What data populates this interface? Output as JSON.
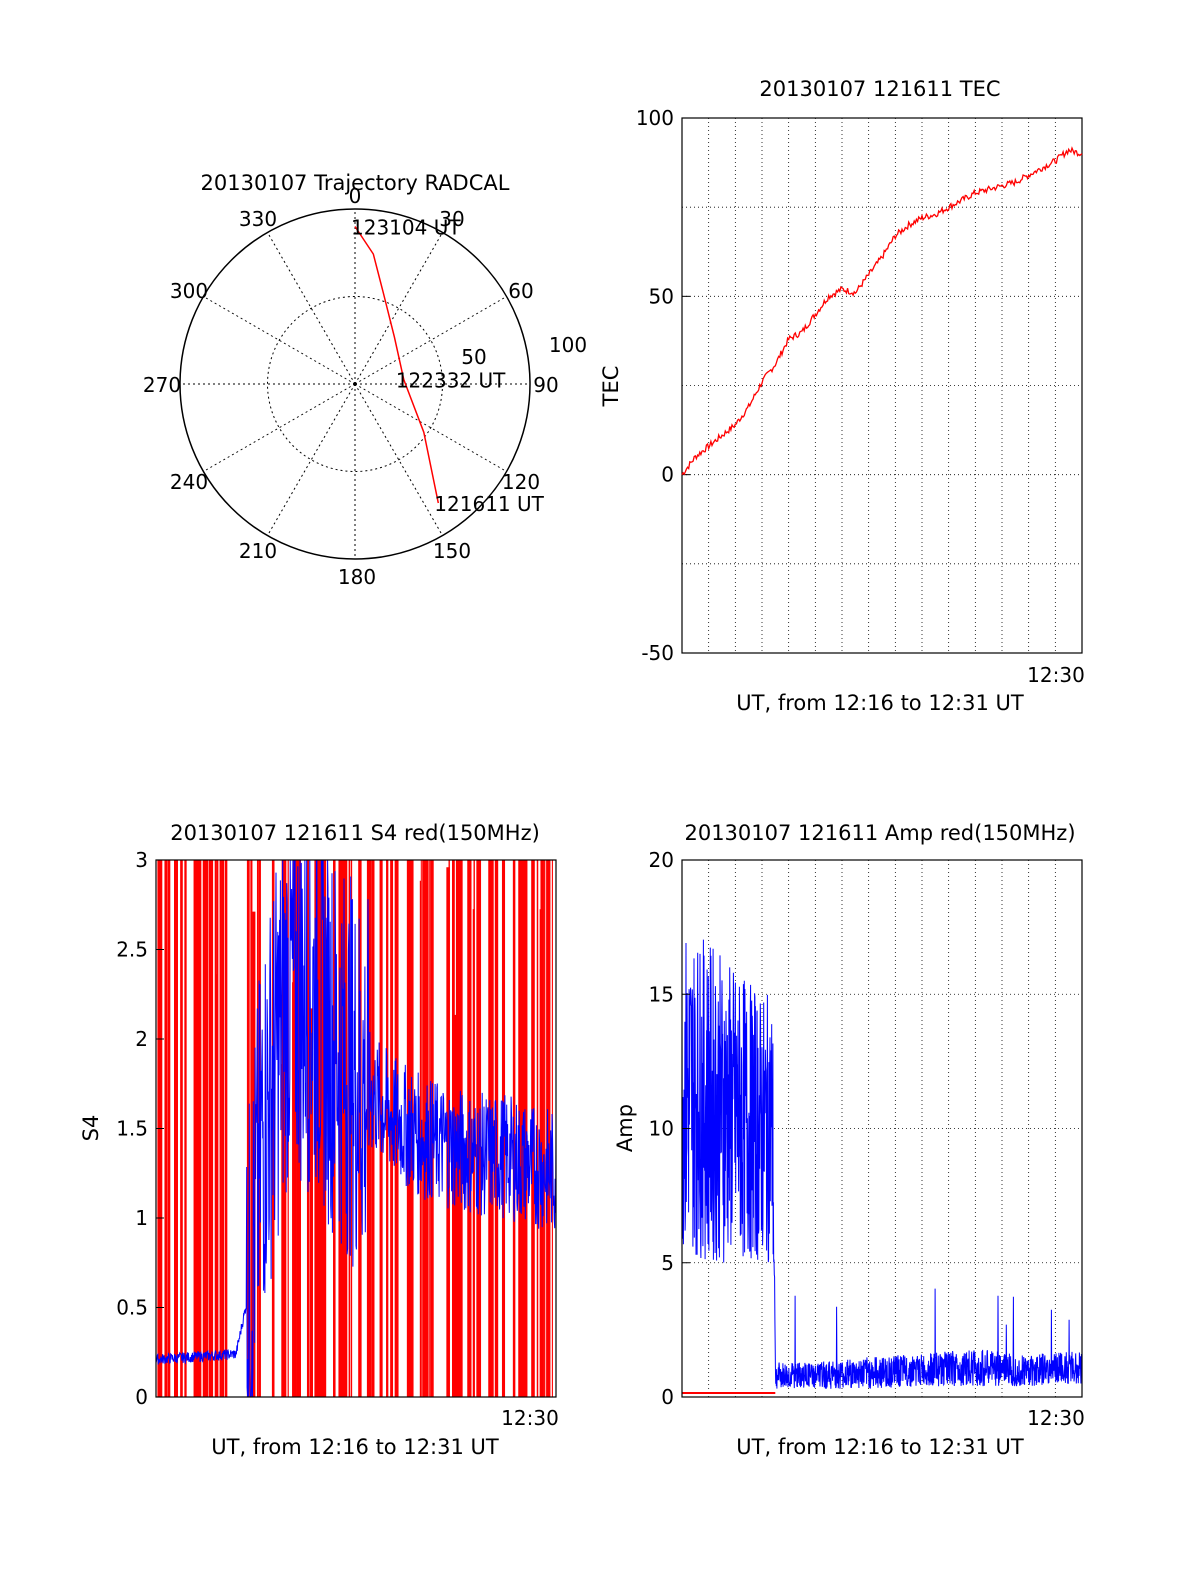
{
  "colors": {
    "red": "#ff0000",
    "blue": "#0000ff",
    "axis": "#000000",
    "grid": "#000000"
  },
  "chart_data": [
    {
      "id": "trajectory",
      "type": "polar",
      "title": "20130107 Trajectory RADCAL",
      "azimuth_labels": [
        "0",
        "30",
        "60",
        "90",
        "120",
        "150",
        "180",
        "210",
        "240",
        "270",
        "300",
        "330"
      ],
      "radial_labels": [
        "50",
        "100"
      ],
      "r_max": 100,
      "grid": true,
      "track": [
        {
          "az": 0,
          "r": 90
        },
        {
          "az": 8,
          "r": 75
        },
        {
          "az": 17,
          "r": 55
        },
        {
          "az": 40,
          "r": 35
        },
        {
          "az": 85,
          "r": 28
        },
        {
          "az": 125,
          "r": 48
        },
        {
          "az": 145,
          "r": 83
        }
      ],
      "annotations": [
        {
          "text": "123104 UT",
          "az": 0,
          "r": 90
        },
        {
          "text": "122332 UT",
          "az": 85,
          "r": 28
        },
        {
          "text": "121611 UT",
          "az": 145,
          "r": 83
        }
      ]
    },
    {
      "id": "tec",
      "type": "line",
      "title": "20130107 121611 TEC",
      "xlabel": "UT, from 12:16 to 12:31 UT",
      "ylabel": "TEC",
      "xlim": [
        0,
        15
      ],
      "ylim": [
        -50,
        100
      ],
      "yticks": [
        "100",
        "50",
        "0",
        "-50"
      ],
      "xtick_label": "12:30",
      "grid": true,
      "series": [
        {
          "color": "red",
          "x": [
            0,
            0.5,
            1,
            1.5,
            2,
            2.5,
            3,
            3.5,
            4,
            4.5,
            5,
            5.5,
            6,
            6.5,
            7,
            7.5,
            8,
            8.5,
            9,
            9.5,
            10,
            10.5,
            11,
            11.5,
            12,
            12.5,
            13,
            13.5,
            14,
            14.5,
            15
          ],
          "y": [
            0,
            5,
            8,
            11,
            14,
            19,
            26,
            31,
            38,
            40,
            45,
            50,
            52,
            51,
            56,
            61,
            67,
            70,
            72,
            73,
            75,
            77,
            79,
            80,
            81,
            82,
            84,
            86,
            88,
            91,
            90
          ]
        }
      ]
    },
    {
      "id": "s4",
      "type": "line",
      "title": "20130107 121611 S4 red(150MHz)",
      "xlabel": "UT, from 12:16 to 12:31 UT",
      "ylabel": "S4",
      "xlim": [
        0,
        15
      ],
      "ylim": [
        0,
        3
      ],
      "yticks": [
        "3",
        "2.5",
        "2",
        "1.5",
        "1",
        "0.5",
        "0"
      ],
      "xtick_label": "12:30",
      "grid": true,
      "series": [
        {
          "name": "",
          "color": "red",
          "x": [
            0,
            15
          ],
          "y": [
            0,
            3
          ]
        },
        {
          "name": "",
          "color": "blue",
          "x": [
            0,
            1,
            2,
            3,
            3.5,
            4,
            5,
            6,
            7,
            8,
            9,
            10,
            11,
            12,
            13,
            14,
            15
          ],
          "y": [
            0.21,
            0.22,
            0.23,
            0.24,
            0.6,
            1.5,
            2.3,
            2.2,
            1.9,
            1.7,
            1.55,
            1.45,
            1.4,
            1.35,
            1.35,
            1.3,
            1.25
          ]
        }
      ]
    },
    {
      "id": "amp",
      "type": "line",
      "title": "20130107 121611 Amp red(150MHz)",
      "xlabel": "UT, from 12:16 to 12:31 UT",
      "ylabel": "Amp",
      "xlim": [
        0,
        15
      ],
      "ylim": [
        0,
        20
      ],
      "yticks": [
        "20",
        "15",
        "10",
        "5",
        "0"
      ],
      "xtick_label": "12:30",
      "grid": true,
      "series": [
        {
          "color": "blue",
          "x": [
            0,
            1,
            2,
            3,
            3.4,
            3.5,
            5,
            7,
            9,
            11,
            13,
            15
          ],
          "y_center": [
            11.5,
            11,
            10.5,
            10,
            10,
            0.8,
            0.8,
            0.9,
            1.0,
            1.1,
            1.0,
            1.1
          ],
          "y_spread": [
            6,
            6,
            5.5,
            5,
            5,
            0.5,
            0.5,
            0.6,
            0.6,
            0.7,
            0.6,
            0.6
          ]
        },
        {
          "color": "red",
          "x": [
            0,
            3.5
          ],
          "y": [
            0.15,
            0.15
          ]
        }
      ]
    }
  ]
}
